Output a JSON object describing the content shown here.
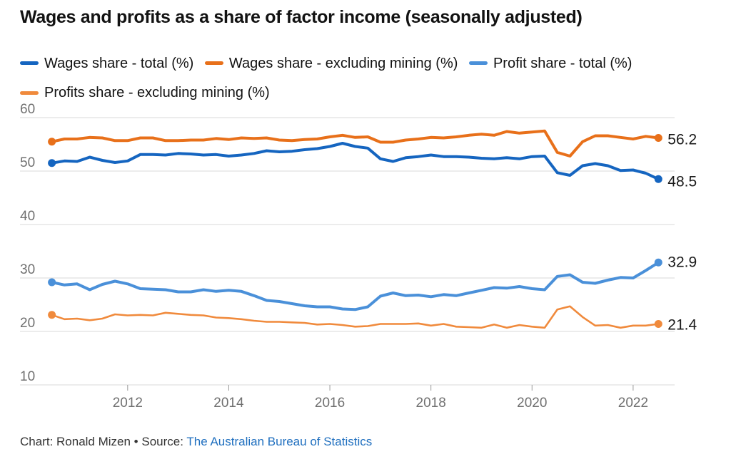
{
  "header": {
    "title": "Wages and profits as a share of factor income (seasonally adjusted)"
  },
  "footer": {
    "credit": "Chart: Ronald Mizen • Source: ",
    "source_link": "The Australian Bureau of Statistics"
  },
  "chart_data": {
    "type": "line",
    "title": "Wages and profits as a share of factor income (seasonally adjusted)",
    "xlabel": "",
    "ylabel": "",
    "xlim": [
      2010.35,
      2022.75
    ],
    "ylim": [
      10,
      60
    ],
    "yticks": [
      10,
      20,
      30,
      40,
      50,
      60
    ],
    "xticks": [
      2012,
      2014,
      2016,
      2018,
      2020,
      2022
    ],
    "grid": true,
    "legend_position": "top",
    "x": [
      2010.5,
      2010.75,
      2011.0,
      2011.25,
      2011.5,
      2011.75,
      2012.0,
      2012.25,
      2012.5,
      2012.75,
      2013.0,
      2013.25,
      2013.5,
      2013.75,
      2014.0,
      2014.25,
      2014.5,
      2014.75,
      2015.0,
      2015.25,
      2015.5,
      2015.75,
      2016.0,
      2016.25,
      2016.5,
      2016.75,
      2017.0,
      2017.25,
      2017.5,
      2017.75,
      2018.0,
      2018.25,
      2018.5,
      2018.75,
      2019.0,
      2019.25,
      2019.5,
      2019.75,
      2020.0,
      2020.25,
      2020.5,
      2020.75,
      2021.0,
      2021.25,
      2021.5,
      2021.75,
      2022.0,
      2022.25,
      2022.5
    ],
    "series": [
      {
        "name": "Wages share - total (%)",
        "color": "#1565c0",
        "label": "48.5",
        "values": [
          51.5,
          51.9,
          51.8,
          52.6,
          52.0,
          51.6,
          51.9,
          53.1,
          53.1,
          53.0,
          53.3,
          53.2,
          53.0,
          53.1,
          52.8,
          53.0,
          53.3,
          53.8,
          53.6,
          53.7,
          54.0,
          54.2,
          54.6,
          55.2,
          54.6,
          54.3,
          52.3,
          51.8,
          52.5,
          52.7,
          53.0,
          52.7,
          52.7,
          52.6,
          52.4,
          52.3,
          52.5,
          52.3,
          52.7,
          52.8,
          49.7,
          49.2,
          51.0,
          51.4,
          51.0,
          50.1,
          50.2,
          49.6,
          48.5
        ]
      },
      {
        "name": "Wages share - excluding mining (%)",
        "color": "#e8701a",
        "label": "56.2",
        "values": [
          55.5,
          56.0,
          56.0,
          56.3,
          56.2,
          55.7,
          55.7,
          56.2,
          56.2,
          55.7,
          55.7,
          55.8,
          55.8,
          56.1,
          55.9,
          56.2,
          56.1,
          56.2,
          55.8,
          55.7,
          55.9,
          56.0,
          56.4,
          56.7,
          56.3,
          56.4,
          55.4,
          55.4,
          55.8,
          56.0,
          56.3,
          56.2,
          56.4,
          56.7,
          56.9,
          56.7,
          57.4,
          57.1,
          57.3,
          57.5,
          53.5,
          52.8,
          55.5,
          56.6,
          56.6,
          56.3,
          56.0,
          56.5,
          56.2
        ]
      },
      {
        "name": "Profit share - total (%)",
        "color": "#4a90d9",
        "label": "32.9",
        "values": [
          29.2,
          28.7,
          28.9,
          27.8,
          28.8,
          29.4,
          28.9,
          28.0,
          27.9,
          27.8,
          27.4,
          27.4,
          27.8,
          27.5,
          27.7,
          27.5,
          26.7,
          25.8,
          25.6,
          25.2,
          24.8,
          24.6,
          24.6,
          24.2,
          24.1,
          24.6,
          26.6,
          27.2,
          26.7,
          26.8,
          26.5,
          26.9,
          26.7,
          27.2,
          27.7,
          28.2,
          28.1,
          28.4,
          28.0,
          27.8,
          30.3,
          30.6,
          29.2,
          29.0,
          29.6,
          30.1,
          30.0,
          31.4,
          32.9
        ]
      },
      {
        "name": "Profits share - excluding mining (%)",
        "color": "#f08a3c",
        "label": "21.4",
        "values": [
          23.1,
          22.3,
          22.4,
          22.1,
          22.4,
          23.2,
          23.0,
          23.1,
          23.0,
          23.5,
          23.3,
          23.1,
          23.0,
          22.6,
          22.5,
          22.3,
          22.0,
          21.8,
          21.8,
          21.7,
          21.6,
          21.3,
          21.4,
          21.2,
          20.9,
          21.0,
          21.4,
          21.4,
          21.4,
          21.5,
          21.1,
          21.4,
          20.9,
          20.8,
          20.7,
          21.3,
          20.7,
          21.2,
          20.9,
          20.7,
          24.1,
          24.7,
          22.7,
          21.1,
          21.2,
          20.7,
          21.1,
          21.1,
          21.4
        ]
      }
    ]
  }
}
